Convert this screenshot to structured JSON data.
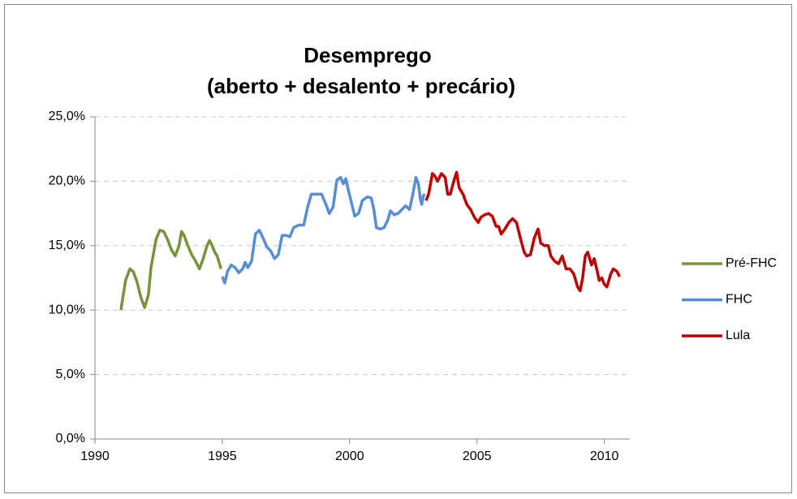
{
  "chart_data": {
    "type": "line",
    "title": [
      "Desemprego",
      "(aberto + desalento + precário)"
    ],
    "xlim": [
      1990,
      2011
    ],
    "xticks": [
      1990,
      1995,
      2000,
      2005,
      2010
    ],
    "ylim": [
      0,
      25
    ],
    "yticks": [
      {
        "value": 0,
        "label": "0,0%"
      },
      {
        "value": 5,
        "label": "5,0%"
      },
      {
        "value": 10,
        "label": "10,0%"
      },
      {
        "value": 15,
        "label": "15,0%"
      },
      {
        "value": 20,
        "label": "20,0%"
      },
      {
        "value": 25,
        "label": "25,0%"
      }
    ],
    "grid": true,
    "legend": "right",
    "series": [
      {
        "name": "Pré-FHC",
        "color": "#77933c",
        "x": [
          1991.02,
          1991.2,
          1991.37,
          1991.5,
          1991.65,
          1991.8,
          1991.95,
          1992.1,
          1992.2,
          1992.4,
          1992.55,
          1992.7,
          1992.85,
          1993.0,
          1993.15,
          1993.3,
          1993.4,
          1993.5,
          1993.65,
          1993.8,
          1993.95,
          1994.1,
          1994.25,
          1994.4,
          1994.5,
          1994.6,
          1994.7,
          1994.8,
          1994.95
        ],
        "values": [
          10.0,
          12.3,
          13.2,
          13.0,
          12.2,
          11.0,
          10.2,
          11.2,
          13.3,
          15.5,
          16.2,
          16.1,
          15.5,
          14.7,
          14.2,
          15.0,
          16.1,
          15.8,
          15.0,
          14.3,
          13.8,
          13.2,
          14.0,
          15.0,
          15.4,
          15.0,
          14.5,
          14.2,
          13.2
        ]
      },
      {
        "name": "FHC",
        "color": "#558ed5",
        "x": [
          1995.0,
          1995.1,
          1995.2,
          1995.35,
          1995.5,
          1995.65,
          1995.8,
          1995.9,
          1996.0,
          1996.15,
          1996.3,
          1996.45,
          1996.6,
          1996.75,
          1996.9,
          1997.05,
          1997.2,
          1997.35,
          1997.5,
          1997.65,
          1997.8,
          1998.0,
          1998.2,
          1998.35,
          1998.5,
          1998.7,
          1998.9,
          1999.05,
          1999.2,
          1999.35,
          1999.5,
          1999.65,
          1999.75,
          1999.85,
          1999.95,
          2000.05,
          2000.2,
          2000.35,
          2000.5,
          2000.7,
          2000.85,
          2000.95,
          2001.05,
          2001.2,
          2001.35,
          2001.5,
          2001.6,
          2001.75,
          2001.9,
          2002.05,
          2002.2,
          2002.35,
          2002.5,
          2002.6,
          2002.7,
          2002.78,
          2002.83,
          2002.9,
          2002.95
        ],
        "values": [
          12.6,
          12.1,
          13.0,
          13.5,
          13.3,
          12.9,
          13.2,
          13.7,
          13.3,
          13.8,
          15.9,
          16.2,
          15.6,
          14.9,
          14.6,
          14.0,
          14.3,
          15.8,
          15.8,
          15.7,
          16.4,
          16.6,
          16.6,
          18.0,
          19.0,
          19.0,
          19.0,
          18.3,
          17.5,
          18.0,
          20.1,
          20.3,
          19.8,
          20.2,
          19.3,
          18.5,
          17.3,
          17.5,
          18.5,
          18.8,
          18.7,
          17.8,
          16.4,
          16.3,
          16.4,
          17.0,
          17.7,
          17.4,
          17.5,
          17.8,
          18.1,
          17.8,
          19.2,
          20.3,
          19.8,
          18.6,
          18.2,
          18.9,
          19.0
        ]
      },
      {
        "name": "Lula",
        "color": "#c00000",
        "x": [
          2003.0,
          2003.1,
          2003.25,
          2003.35,
          2003.45,
          2003.6,
          2003.75,
          2003.85,
          2003.95,
          2004.1,
          2004.2,
          2004.3,
          2004.45,
          2004.6,
          2004.75,
          2004.9,
          2005.05,
          2005.15,
          2005.3,
          2005.45,
          2005.6,
          2005.75,
          2005.85,
          2005.95,
          2006.1,
          2006.25,
          2006.4,
          2006.55,
          2006.7,
          2006.85,
          2006.95,
          2007.1,
          2007.25,
          2007.4,
          2007.5,
          2007.65,
          2007.8,
          2007.9,
          2008.05,
          2008.2,
          2008.35,
          2008.5,
          2008.65,
          2008.8,
          2008.95,
          2009.05,
          2009.15,
          2009.25,
          2009.35,
          2009.5,
          2009.6,
          2009.7,
          2009.8,
          2009.9,
          2010.0,
          2010.1,
          2010.25,
          2010.35,
          2010.5,
          2010.6
        ],
        "values": [
          18.5,
          19.0,
          20.6,
          20.4,
          20.0,
          20.6,
          20.3,
          19.0,
          19.0,
          20.1,
          20.7,
          19.5,
          19.0,
          18.2,
          17.8,
          17.2,
          16.8,
          17.2,
          17.4,
          17.5,
          17.3,
          16.5,
          16.5,
          15.9,
          16.3,
          16.8,
          17.1,
          16.8,
          15.6,
          14.5,
          14.2,
          14.3,
          15.6,
          16.3,
          15.2,
          15.0,
          15.0,
          14.2,
          13.8,
          13.6,
          14.2,
          13.2,
          13.2,
          12.8,
          11.8,
          11.5,
          12.5,
          14.2,
          14.5,
          13.5,
          14.0,
          13.2,
          12.3,
          12.5,
          12.0,
          11.8,
          12.8,
          13.2,
          13.0,
          12.6
        ]
      }
    ]
  }
}
